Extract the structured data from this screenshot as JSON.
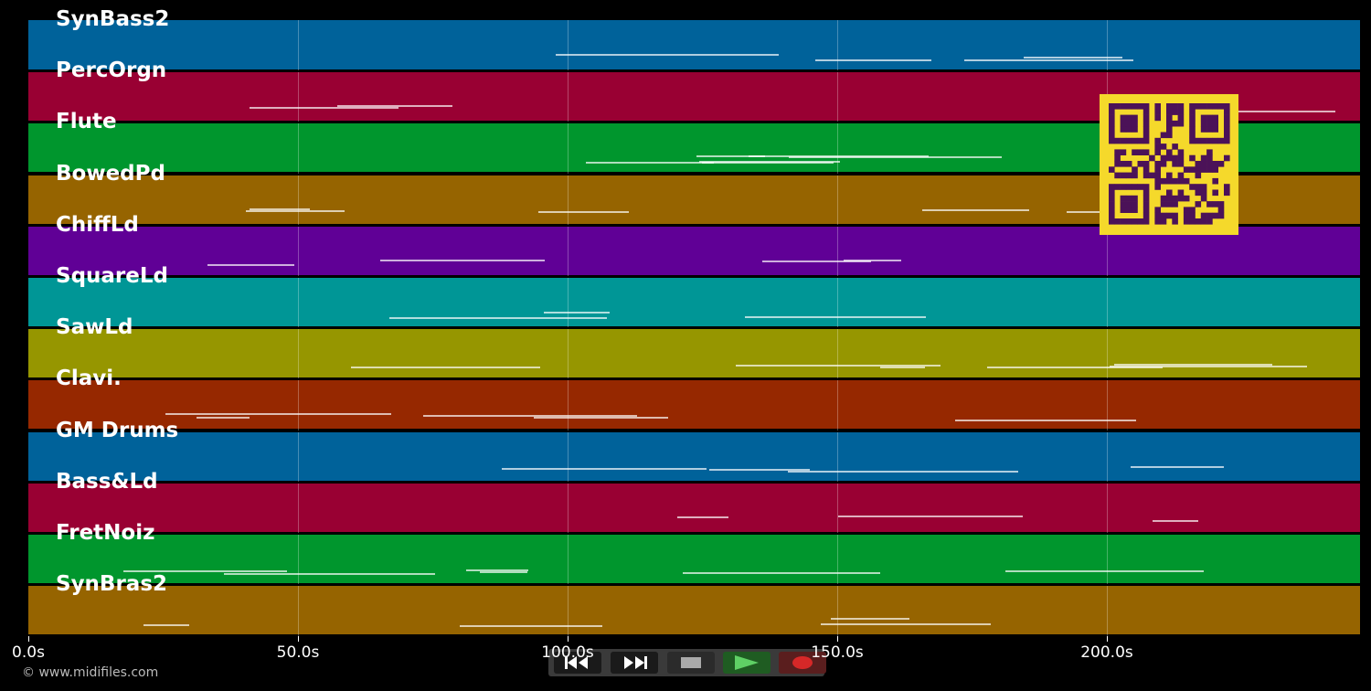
{
  "timeline": {
    "tracks": [
      {
        "name": "SynBass2",
        "color": "#00629a"
      },
      {
        "name": "PercOrgn",
        "color": "#990033"
      },
      {
        "name": "Flute",
        "color": "#00962d"
      },
      {
        "name": "BowedPd",
        "color": "#966400"
      },
      {
        "name": "ChiffLd",
        "color": "#600096"
      },
      {
        "name": "SquareLd",
        "color": "#009696"
      },
      {
        "name": "SawLd",
        "color": "#969600"
      },
      {
        "name": "Clavi.",
        "color": "#962800"
      },
      {
        "name": "GM Drums",
        "color": "#00629a"
      },
      {
        "name": "Bass&Ld",
        "color": "#990033"
      },
      {
        "name": "FretNoiz",
        "color": "#00962d"
      },
      {
        "name": "SynBras2",
        "color": "#966400"
      }
    ],
    "time_axis": {
      "ticks": [
        {
          "label": "0.0s",
          "seconds": 0
        },
        {
          "label": "50.0s",
          "seconds": 50
        },
        {
          "label": "100.0s",
          "seconds": 100
        },
        {
          "label": "150.0s",
          "seconds": 150
        },
        {
          "label": "200.0s",
          "seconds": 200
        }
      ]
    }
  },
  "transport": {
    "buttons": [
      {
        "name": "rewind",
        "icon": "rewind-icon"
      },
      {
        "name": "fast-forward",
        "icon": "fast-forward-icon"
      },
      {
        "name": "stop",
        "icon": "stop-icon"
      },
      {
        "name": "play",
        "icon": "play-icon",
        "color": "#3cb043"
      },
      {
        "name": "record",
        "icon": "record-icon",
        "color": "#d62828"
      }
    ]
  },
  "footer": {
    "copyright": "© www.midifiles.com"
  }
}
